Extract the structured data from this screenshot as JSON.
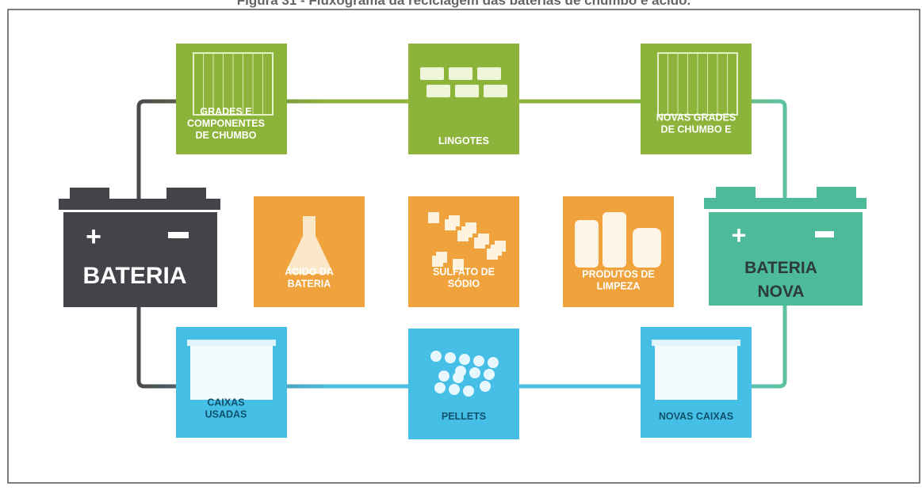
{
  "figure_title": "Figura 31 - Fluxograma da reciclagem das baterias de chumbo e ácido.",
  "batteries": [
    {
      "label": [
        "BATERIA"
      ]
    },
    {
      "label": [
        "BATERIA",
        "NOVA"
      ]
    }
  ],
  "nodes": [
    {
      "label": [
        "GRADES E",
        "COMPONENTES",
        "DE CHUMBO"
      ]
    },
    {
      "label": [
        "LINGOTES"
      ]
    },
    {
      "label": [
        "NOVAS GRADES",
        "DE CHUMBO E"
      ]
    },
    {
      "label": [
        "ÁCIDO DA",
        "BATERIA"
      ]
    },
    {
      "label": [
        "SULFATO DE",
        "SÓDIO"
      ]
    },
    {
      "label": [
        "PRODUTOS DE",
        "LIMPEZA"
      ]
    },
    {
      "label": [
        "CAIXAS",
        "USADAS"
      ]
    },
    {
      "label": [
        "PELLETS"
      ]
    },
    {
      "label": [
        "NOVAS CAIXAS"
      ]
    }
  ]
}
